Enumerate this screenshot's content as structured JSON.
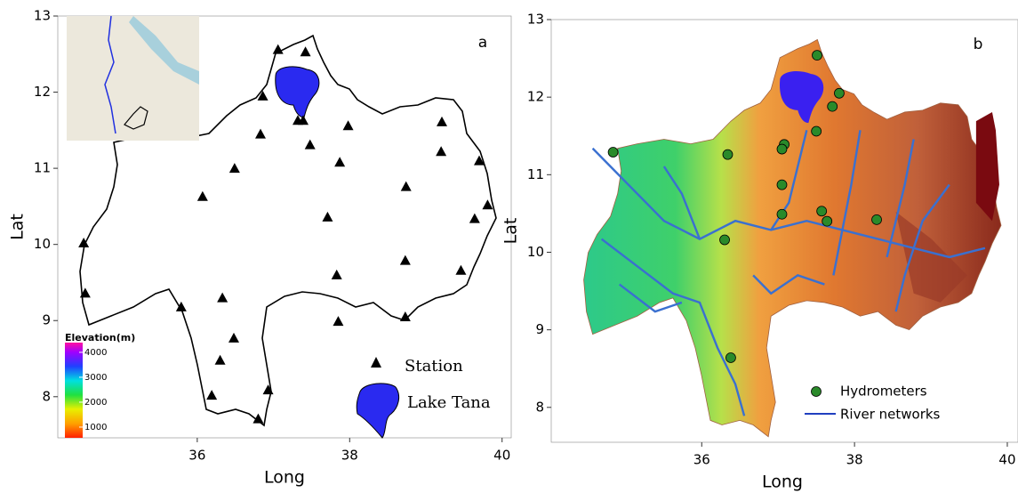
{
  "chart_data": [
    {
      "type": "map",
      "panel_label": "a",
      "x_label": "Long",
      "y_label": "Lat",
      "xlim": [
        34.17,
        40.12
      ],
      "ylim": [
        7.46,
        13
      ],
      "xticks": [
        36,
        38,
        40
      ],
      "yticks": [
        8,
        9,
        10,
        11,
        12,
        13
      ],
      "series": [
        {
          "name": "Station",
          "color": "#000000",
          "x": [
            37.06,
            37.42,
            36.86,
            37.32,
            37.39,
            37.98,
            36.83,
            37.48,
            36.49,
            37.87,
            39.21,
            39.2,
            39.7,
            38.74,
            36.07,
            39.81,
            37.71,
            39.64,
            34.51,
            38.73,
            39.46,
            37.83,
            34.53,
            36.33,
            35.79,
            36.48,
            37.85,
            38.73,
            36.3,
            36.19,
            36.93,
            36.8
          ],
          "values": [
            12.56,
            12.53,
            11.95,
            11.63,
            11.63,
            11.56,
            11.45,
            11.31,
            11.0,
            11.08,
            11.61,
            11.22,
            11.1,
            10.76,
            10.63,
            10.52,
            10.36,
            10.34,
            10.02,
            9.79,
            9.66,
            9.6,
            9.36,
            9.3,
            9.18,
            8.77,
            8.99,
            9.05,
            8.48,
            8.02,
            8.09,
            7.71
          ]
        }
      ],
      "lake_label": "Lake Tana",
      "colorbar": {
        "title": "Elevation(m)",
        "ticks": [
          1000,
          2000,
          3000,
          4000
        ],
        "lim": [
          570,
          4390
        ]
      }
    },
    {
      "type": "map",
      "panel_label": "b",
      "x_label": "Long",
      "y_label": "Lat",
      "xlim": [
        34.03,
        40.14
      ],
      "ylim": [
        7.55,
        13
      ],
      "xticks": [
        36,
        38,
        40
      ],
      "yticks": [
        8,
        9,
        10,
        11,
        12,
        13
      ],
      "series": [
        {
          "name": "Hydrometers",
          "color": "#2a8a2a",
          "x": [
            37.51,
            37.8,
            37.71,
            37.5,
            37.08,
            37.05,
            36.34,
            34.84,
            37.05,
            37.57,
            37.05,
            37.64,
            38.29,
            36.3,
            36.38
          ],
          "values": [
            12.54,
            12.05,
            11.88,
            11.56,
            11.39,
            11.33,
            11.26,
            11.29,
            10.87,
            10.53,
            10.49,
            10.4,
            10.42,
            10.16,
            8.64
          ]
        }
      ],
      "river_label": "River networks"
    }
  ]
}
